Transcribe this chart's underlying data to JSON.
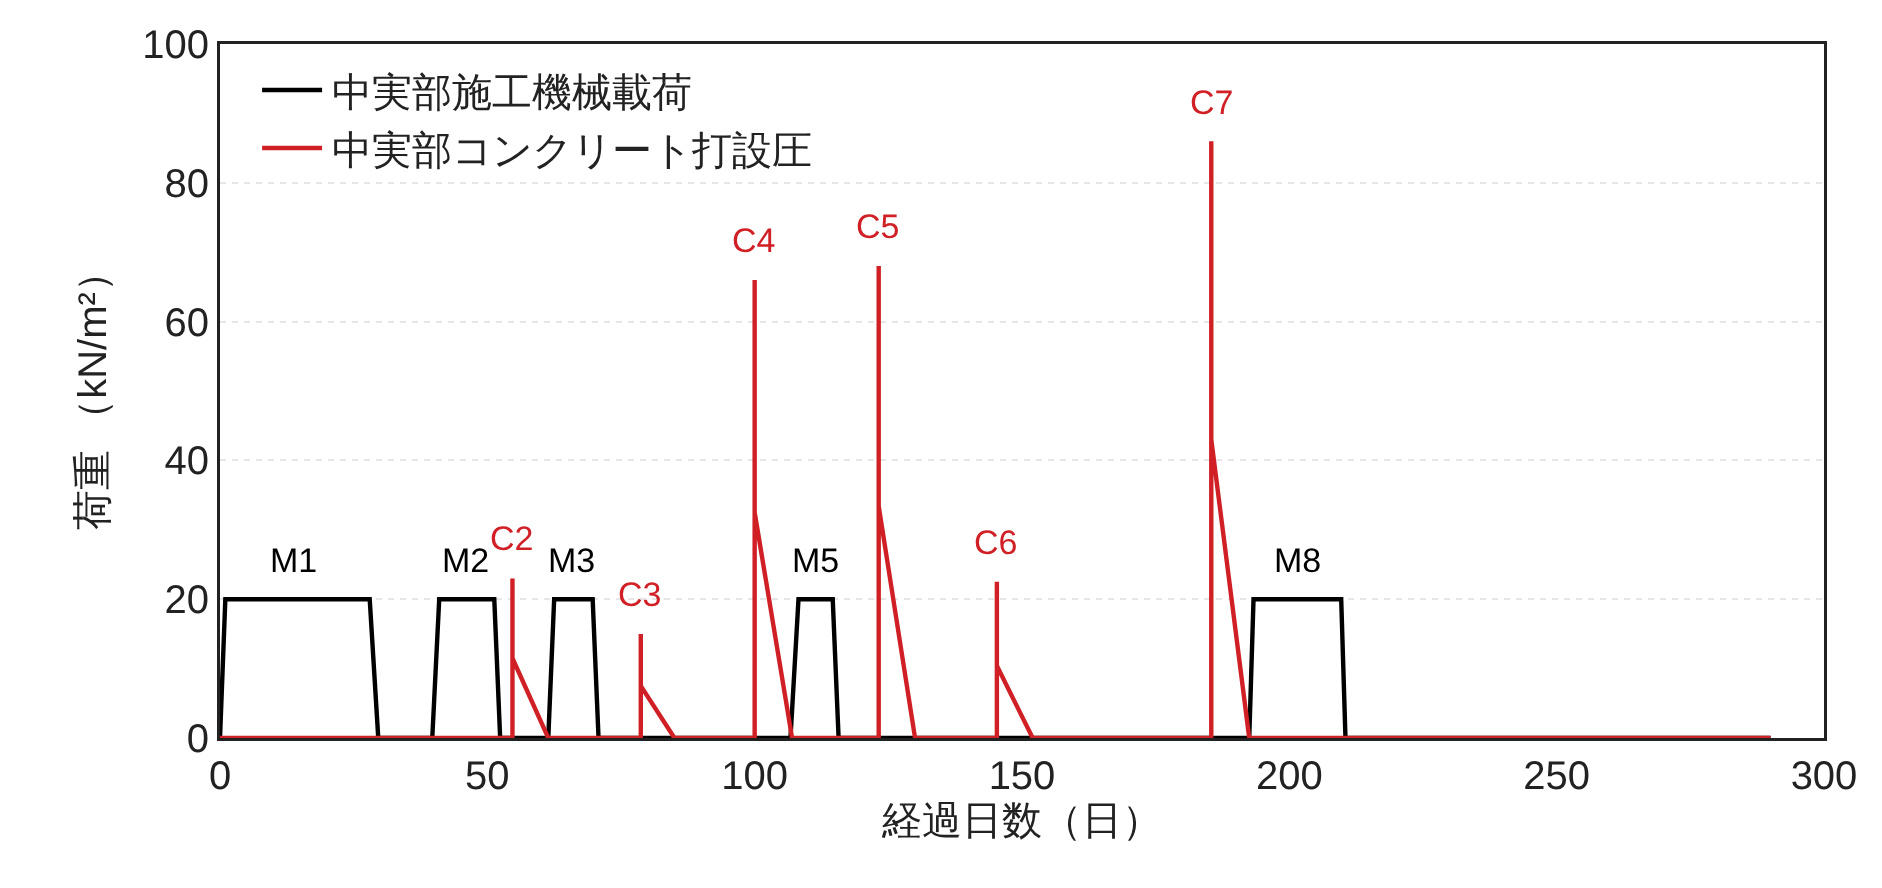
{
  "chart_data": {
    "type": "line",
    "xlabel": "経過日数（日）",
    "ylabel": "荷重 （kN/m²）",
    "xlim": [
      0,
      300
    ],
    "xticks": [
      0,
      50,
      100,
      150,
      200,
      250,
      300
    ],
    "ylim": [
      0,
      100
    ],
    "yticks": [
      0,
      20,
      40,
      60,
      80,
      100
    ],
    "grid": "y",
    "legend": "top left",
    "marker": "none",
    "line_style": "solid",
    "series": [
      {
        "name": "中実部施工機械載荷",
        "color": "#000000",
        "x": [
          0,
          1,
          28,
          29.6,
          39.7,
          41,
          51.3,
          52.4,
          61.4,
          62.5,
          69.7,
          70.8,
          106.7,
          108.2,
          114.6,
          115.7,
          192.5,
          193.3,
          209.7,
          210.5,
          290
        ],
        "values": [
          0,
          20,
          20,
          0,
          0,
          20,
          20,
          0,
          0,
          20,
          20,
          0,
          0,
          20,
          20,
          0,
          0,
          20,
          20,
          0,
          0
        ]
      },
      {
        "name": "中実部コンクリート打設圧",
        "color": "#d01f25",
        "x": [
          0,
          54.7,
          54.7,
          54.7,
          61.4,
          78.7,
          78.7,
          78.7,
          85,
          100,
          100,
          100,
          107,
          123.2,
          123.2,
          123.2,
          130,
          145.3,
          145.3,
          145.3,
          152,
          185.4,
          185.4,
          185.4,
          192.5,
          290
        ],
        "values": [
          0,
          0,
          23,
          11.5,
          0,
          0,
          15,
          7.5,
          0,
          0,
          66,
          32.5,
          0,
          0,
          68,
          33.4,
          0,
          0,
          22.5,
          10.4,
          0,
          0,
          86,
          43,
          0,
          0
        ]
      }
    ],
    "annotations": [
      {
        "text": "M1",
        "x": 14,
        "y": 20
      },
      {
        "text": "M2",
        "x": 46,
        "y": 20
      },
      {
        "text": "M3",
        "x": 66,
        "y": 20
      },
      {
        "text": "M5",
        "x": 111.4,
        "y": 20
      },
      {
        "text": "M8",
        "x": 201.5,
        "y": 20
      },
      {
        "text": "C2",
        "x": 54.7,
        "y": 23
      },
      {
        "text": "C3",
        "x": 78.7,
        "y": 15
      },
      {
        "text": "C4",
        "x": 100,
        "y": 66
      },
      {
        "text": "C5",
        "x": 123.2,
        "y": 68
      },
      {
        "text": "C6",
        "x": 145.3,
        "y": 22.5
      },
      {
        "text": "C7",
        "x": 185.4,
        "y": 86
      }
    ]
  }
}
